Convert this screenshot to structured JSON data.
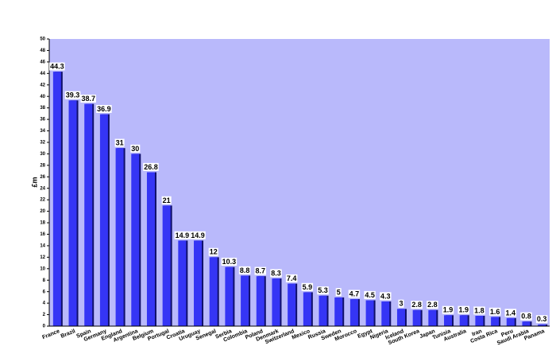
{
  "chart_data": {
    "type": "bar",
    "y_label": "£m",
    "categories": [
      "France",
      "Brazil",
      "Spain",
      "Germany",
      "England",
      "Argentina",
      "Belgium",
      "Portugal",
      "Croatia",
      "Uruguay",
      "Senegal",
      "Serbia",
      "Colombia",
      "Poland",
      "Denmark",
      "Switzerland",
      "Mexico",
      "Russia",
      "Sweden",
      "Morocco",
      "Egypt",
      "Nigeria",
      "Iceland",
      "South Korea",
      "Japan",
      "Tunisia",
      "Australia",
      "Iran",
      "Costa Rica",
      "Peru",
      "Saudi Arabia",
      "Panama"
    ],
    "values": [
      44.3,
      39.3,
      38.7,
      36.9,
      31,
      30,
      26.8,
      21,
      14.9,
      14.9,
      12,
      10.3,
      8.8,
      8.7,
      8.3,
      7.4,
      5.9,
      5.3,
      5,
      4.7,
      4.5,
      4.3,
      3,
      2.8,
      2.8,
      1.9,
      1.9,
      1.8,
      1.6,
      1.4,
      0.8,
      0.3
    ],
    "color": "#3535f5",
    "background": "#b9b9fb",
    "ylim": [
      0,
      50
    ],
    "yticks": [
      0,
      2,
      4,
      6,
      8,
      10,
      12,
      14,
      16,
      18,
      20,
      22,
      24,
      26,
      28,
      30,
      32,
      34,
      36,
      38,
      40,
      42,
      44,
      46,
      48,
      50
    ]
  }
}
